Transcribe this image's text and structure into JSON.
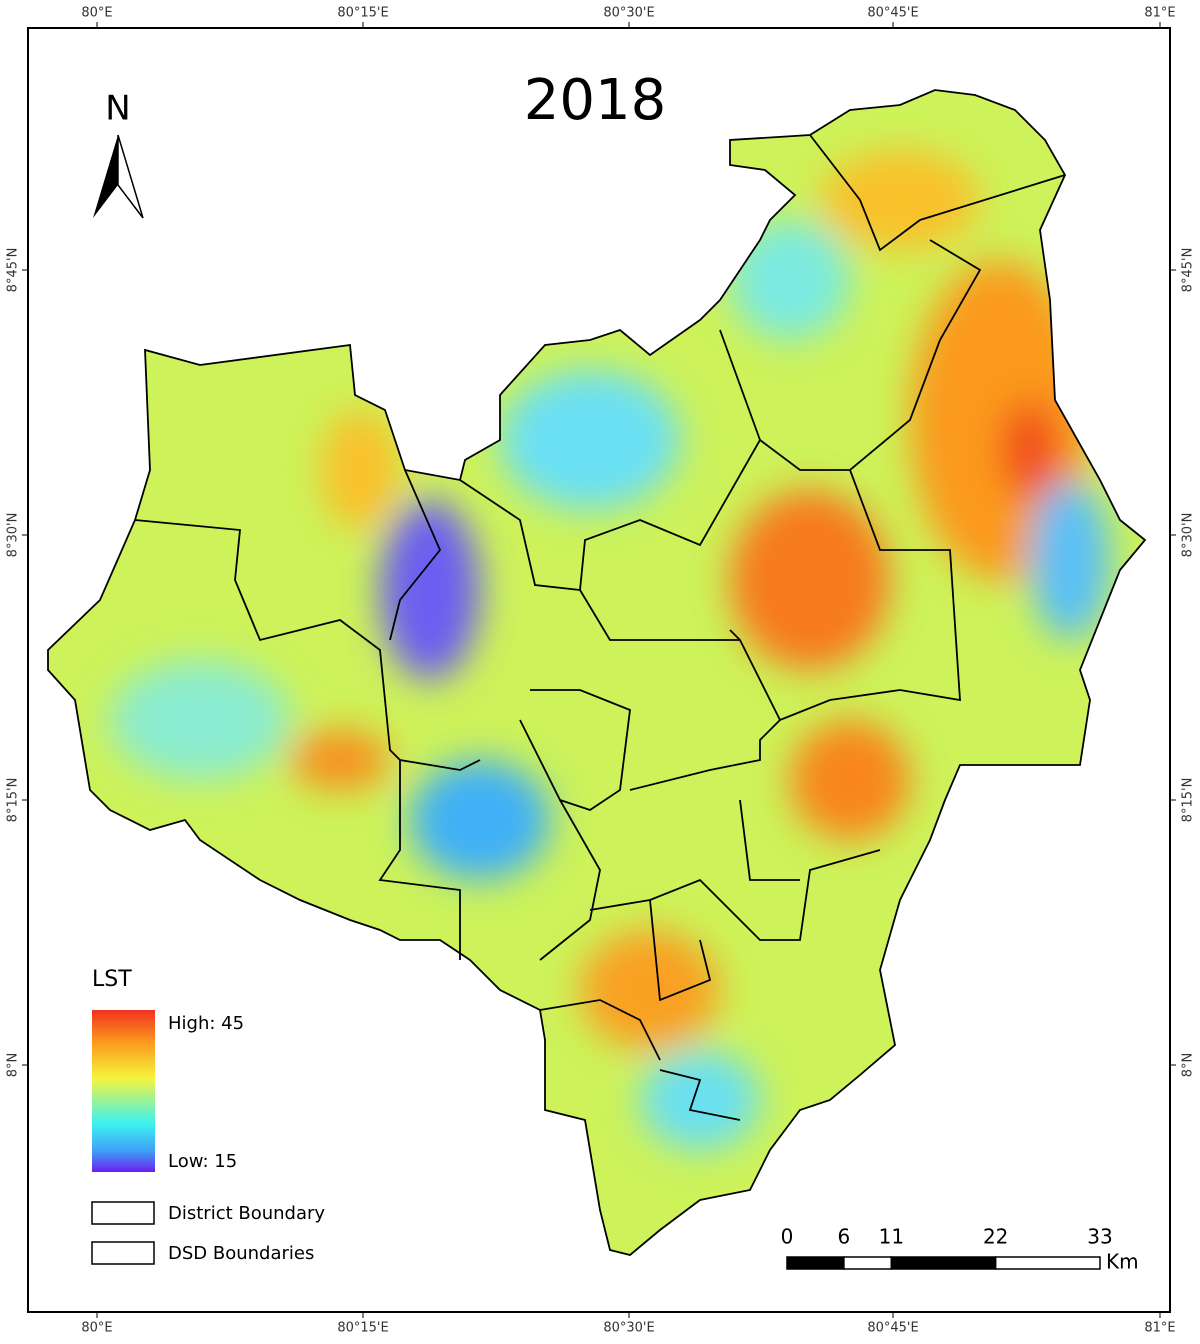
{
  "title": "2018",
  "north": "N",
  "lon_labels": [
    "80°E",
    "80°15'E",
    "80°30'E",
    "80°45'E",
    "81°E"
  ],
  "lat_labels": [
    "8°45'N",
    "8°30'N",
    "8°15'N",
    "8°N"
  ],
  "legend": {
    "title": "LST",
    "high": "High: 45",
    "low": "Low: 15",
    "items": [
      "District Boundary",
      "DSD Boundaries"
    ]
  },
  "scale_bar": {
    "ticks": [
      0,
      6,
      11,
      22,
      33
    ],
    "unit": "Km"
  }
}
